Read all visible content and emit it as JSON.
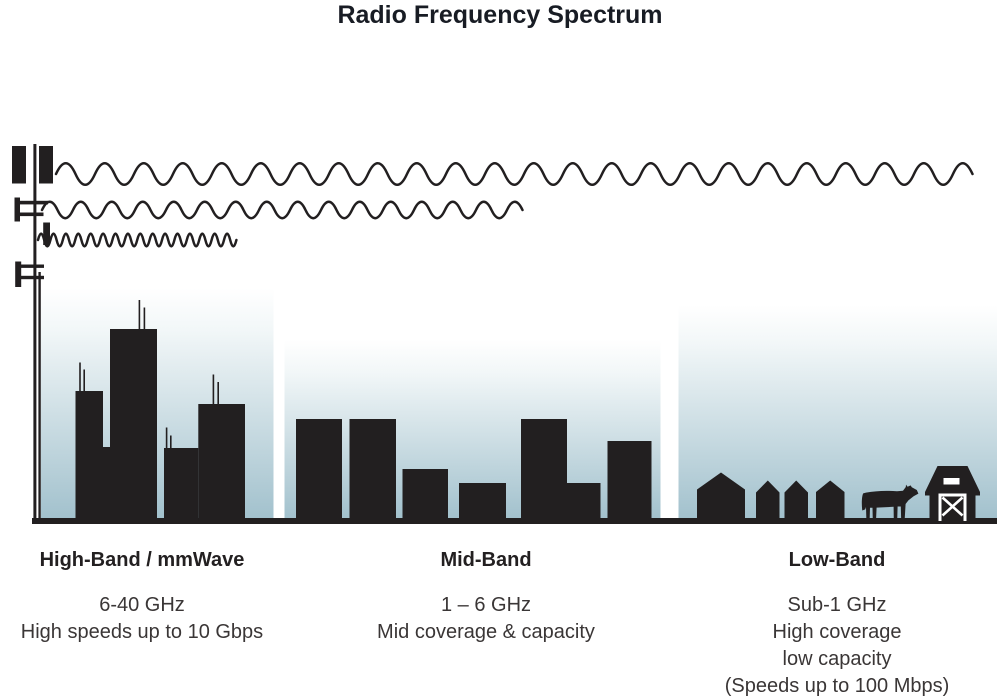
{
  "title": "Radio Frequency Spectrum",
  "colors": {
    "silhouette": "#221f20",
    "sky_gradient_bottom": "#a2c1cd",
    "title_text": "#181c24",
    "body_text": "#3a3636"
  },
  "tower": {
    "icon": "cell-tower-icon"
  },
  "waves": [
    {
      "icon": "low-band-wave-icon",
      "wavelength": "long",
      "reach": "longest"
    },
    {
      "icon": "mid-band-wave-icon",
      "wavelength": "medium",
      "reach": "medium"
    },
    {
      "icon": "high-band-wave-icon",
      "wavelength": "short",
      "reach": "shortest"
    }
  ],
  "sections": [
    {
      "label": "High-Band / mmWave",
      "frequency": "6-40 GHz",
      "details": [
        "High speeds up to 10 Gbps"
      ],
      "scene_icons": [
        "skyscraper-icon"
      ]
    },
    {
      "label": "Mid-Band",
      "frequency": "1 – 6 GHz",
      "details": [
        "Mid coverage & capacity"
      ],
      "scene_icons": [
        "mid-rise-building-icon"
      ]
    },
    {
      "label": "Low-Band",
      "frequency": "Sub-1 GHz",
      "details": [
        "High coverage",
        "low capacity",
        "(Speeds up to 100 Mbps)"
      ],
      "scene_icons": [
        "house-icon",
        "cow-icon",
        "barn-icon"
      ]
    }
  ]
}
